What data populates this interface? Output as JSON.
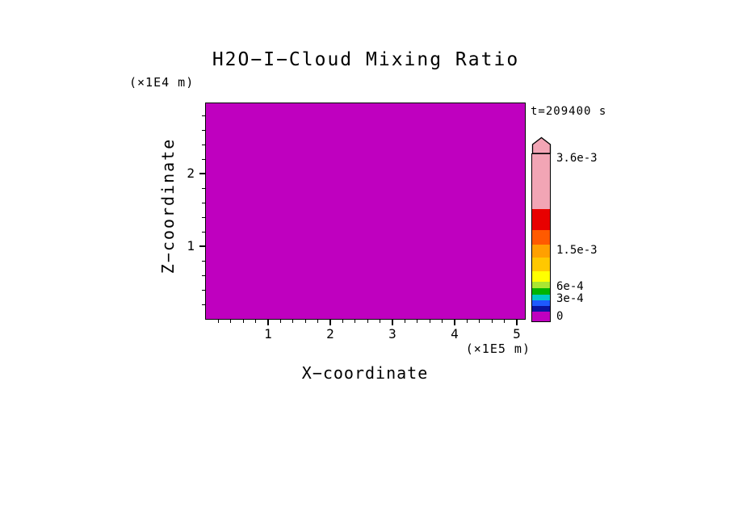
{
  "title": "H2O−I−Cloud Mixing Ratio",
  "time_label": "t=209400 s",
  "axes": {
    "x_label": "X−coordinate",
    "x_unit": "(×1E5 m)",
    "z_label": "Z−coordinate",
    "z_unit": "(×1E4 m)"
  },
  "chart_data": {
    "type": "heatmap",
    "title": "H2O-I-Cloud Mixing Ratio",
    "xlabel": "X-coordinate",
    "x_unit_scale": "(×1E5 m)",
    "ylabel": "Z-coordinate",
    "y_unit_scale": "(×1E4 m)",
    "time_annotation": "t=209400 s",
    "xlim": [
      0,
      5.13
    ],
    "ylim": [
      0,
      2.97
    ],
    "x_major_ticks": [
      1,
      2,
      3,
      4,
      5
    ],
    "y_major_ticks": [
      1,
      2
    ],
    "x_minor_step": 0.2,
    "y_minor_step": 0.2,
    "grid": false,
    "legend_position": "right",
    "field_description": "uniform filled field across entire plot domain",
    "field_value": 0,
    "field_color": "#BF00BF",
    "colorbar": {
      "position": "right",
      "arrow_color": "#F2A5B5",
      "value_labels": [
        {
          "text": "3.6e-3",
          "value": 0.0036,
          "dy": 6
        },
        {
          "text": "1.5e-3",
          "value": 0.0015,
          "dy": 120
        },
        {
          "text": "6e-4",
          "value": 0.0006,
          "dy": 165
        },
        {
          "text": "3e-4",
          "value": 0.0003,
          "dy": 180
        },
        {
          "text": "0",
          "value": 0,
          "dy": 202
        }
      ],
      "segments": [
        {
          "color": "#F2A5B5",
          "h": 68
        },
        {
          "color": "#E80000",
          "h": 26
        },
        {
          "color": "#FF5A00",
          "h": 18
        },
        {
          "color": "#FFA000",
          "h": 16
        },
        {
          "color": "#FFC800",
          "h": 17
        },
        {
          "color": "#FFFF00",
          "h": 13
        },
        {
          "color": "#AAE632",
          "h": 8
        },
        {
          "color": "#00B400",
          "h": 8
        },
        {
          "color": "#00C8C8",
          "h": 7
        },
        {
          "color": "#1E5AFF",
          "h": 7
        },
        {
          "color": "#0A14A0",
          "h": 7
        },
        {
          "color": "#BF00BF",
          "h": 12
        }
      ]
    }
  }
}
